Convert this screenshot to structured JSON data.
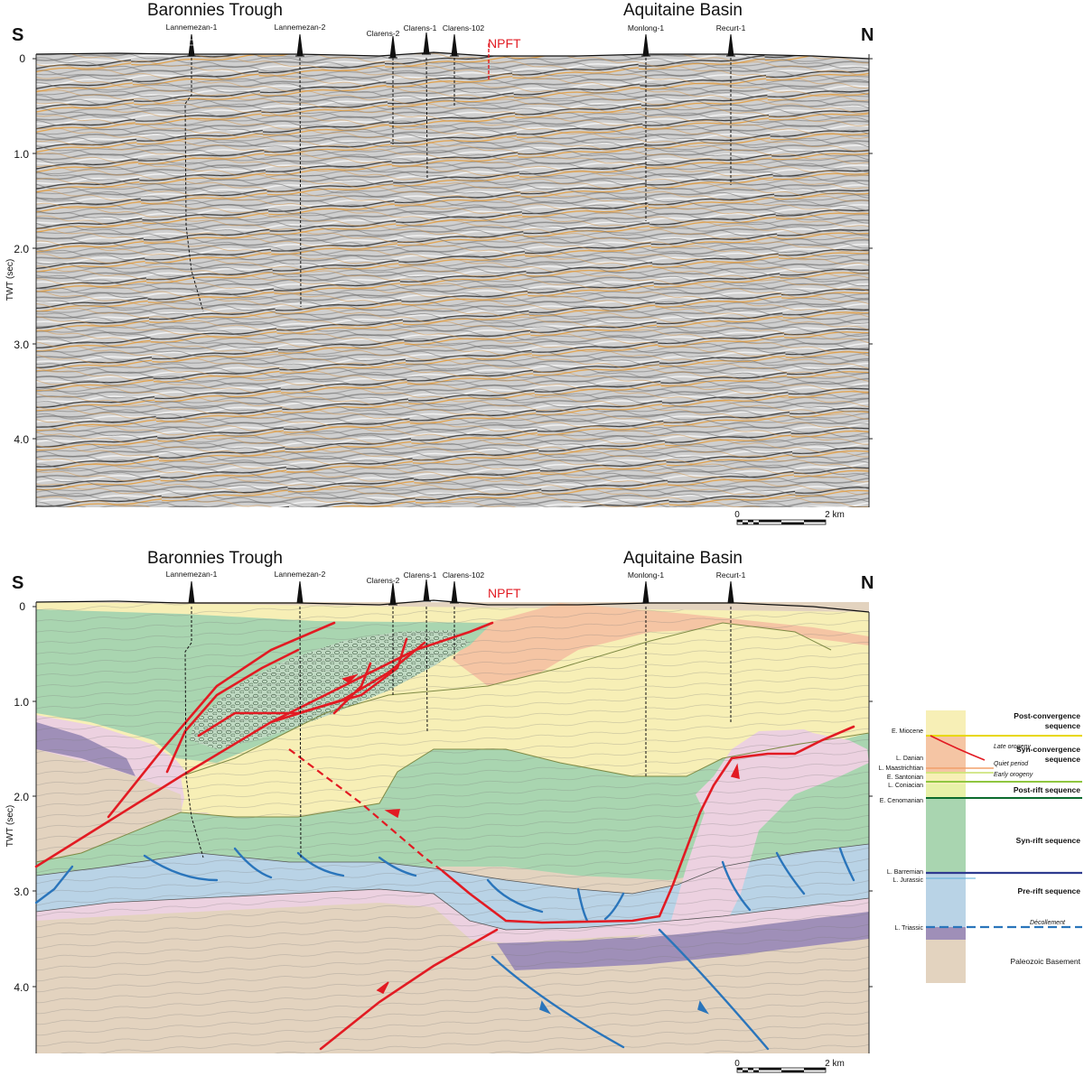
{
  "top_section": {
    "region_left": "Baronnies Trough",
    "region_right": "Aquitaine Basin",
    "dir_left": "S",
    "dir_right": "N",
    "fault_label": "NPFT",
    "y_axis_label": "TWT (sec)",
    "y_ticks": [
      "0",
      "1.0",
      "2.0",
      "3.0",
      "4.0"
    ],
    "scale_start": "0",
    "scale_end": "2 km",
    "wells": [
      "Lannemezan-1",
      "Lannemezan-2",
      "Clarens-2",
      "Clarens-1",
      "Clarens-102",
      "Monlong-1",
      "Recurt-1"
    ]
  },
  "bottom_section": {
    "region_left": "Baronnies Trough",
    "region_right": "Aquitaine Basin",
    "dir_left": "S",
    "dir_right": "N",
    "fault_label": "NPFT",
    "y_axis_label": "TWT (sec)",
    "y_ticks": [
      "0",
      "1.0",
      "2.0",
      "3.0",
      "4.0"
    ],
    "scale_start": "0",
    "scale_end": "2 km",
    "wells": [
      "Lannemezan-1",
      "Lannemezan-2",
      "Clarens-2",
      "Clarens-1",
      "Clarens-102",
      "Monlong-1",
      "Recurt-1"
    ]
  },
  "legend": {
    "horizons": [
      "E. Miocene",
      "L. Danian",
      "L. Maastrichtian",
      "E. Santonian",
      "L. Coniacian",
      "E. Cenomanian",
      "L. Barremian",
      "L. Jurassic",
      "L. Triassic"
    ],
    "sequences": {
      "post_convergence": [
        "Post-convergence",
        "sequence"
      ],
      "syn_convergence": [
        "Syn-convergence",
        "sequence"
      ],
      "post_rift": "Post-rift sequence",
      "syn_rift": "Syn-rift sequence",
      "pre_rift": "Pre-rift sequence",
      "basement": "Paleozoic Basement"
    },
    "periods": {
      "late_orogeny": "Late orogeny",
      "quiet_period": "Quiet period",
      "early_orogeny": "Early orogeny",
      "decollement": "Décollement"
    },
    "colors": {
      "post_convergence": "#f7efb6",
      "syn_convergence": "#f5c5a4",
      "post_rift": "#e8f1a8",
      "syn_rift": "#a9d5b0",
      "pre_rift": "#b9d3e6",
      "triassic": "#9f8fb8",
      "basement": "#e3d3bf",
      "thrust_fault": "#e21b23",
      "normal_fault": "#2a75bb"
    }
  }
}
